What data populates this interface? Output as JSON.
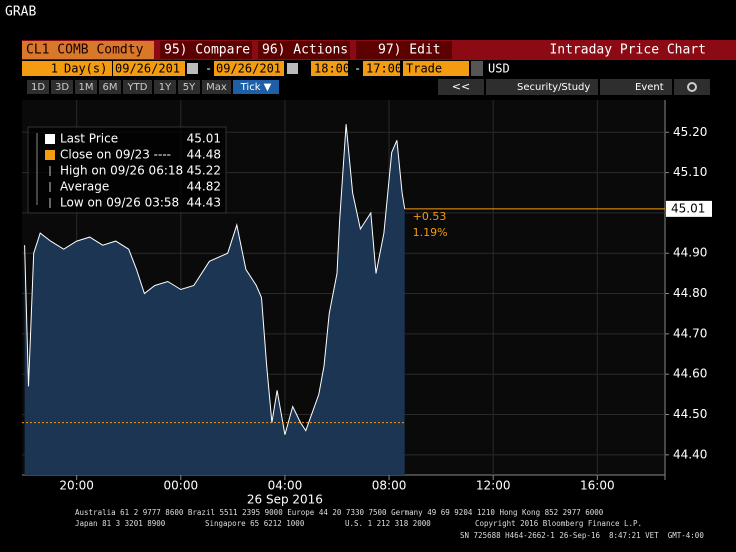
{
  "header": {
    "title": "GRAB"
  },
  "toolbar": {
    "security": "CL1 COMB Comdty",
    "buttons": [
      "95) Compare",
      "96) Actions",
      "97) Edit"
    ],
    "function": "Intraday Price Chart"
  },
  "settings": {
    "period": "1",
    "period_unit": "Day(s)",
    "start_date": "09/26/201",
    "separator": "-",
    "end_date": "09/26/201",
    "start_time": "18:00",
    "end_time": "17:00",
    "field": "Trade",
    "currency": "USD"
  },
  "range_buttons": [
    "1D",
    "3D",
    "1M",
    "6M",
    "YTD",
    "1Y",
    "5Y",
    "Max"
  ],
  "selected_button": "Tick ▼",
  "tools": [
    "<<",
    "Security/Study",
    "Event"
  ],
  "chart_data": {
    "type": "line",
    "color": "#ffffff",
    "area_color": "#1b3552",
    "x": [
      0,
      0.15,
      0.35,
      0.6,
      1,
      1.5,
      2,
      2.5,
      3,
      3.5,
      4,
      4.3,
      4.6,
      5,
      5.5,
      6,
      6.5,
      7.1,
      7.8,
      8.15,
      8.5,
      8.9,
      9.1,
      9.3,
      9.5,
      9.7,
      10,
      10.3,
      10.6,
      10.8,
      11.3,
      11.5,
      11.7,
      12,
      12.1,
      12.35,
      12.6,
      12.9,
      13.3,
      13.5,
      13.8,
      14.1,
      14.3,
      14.5,
      14.6
    ],
    "values": [
      44.92,
      44.57,
      44.9,
      44.95,
      44.93,
      44.91,
      44.93,
      44.94,
      44.92,
      44.93,
      44.91,
      44.86,
      44.8,
      44.82,
      44.83,
      44.81,
      44.82,
      44.88,
      44.9,
      44.97,
      44.86,
      44.82,
      44.79,
      44.62,
      44.48,
      44.56,
      44.45,
      44.52,
      44.48,
      44.46,
      44.55,
      44.62,
      44.75,
      44.85,
      44.98,
      45.22,
      45.05,
      44.96,
      45.0,
      44.85,
      44.95,
      45.15,
      45.18,
      45.05,
      45.01
    ],
    "xlim": [
      -0.1,
      24.6
    ],
    "xticks": [
      {
        "value": 2,
        "label": "20:00"
      },
      {
        "value": 6,
        "label": "00:00"
      },
      {
        "value": 10,
        "label": "04:00"
      },
      {
        "value": 14,
        "label": "08:00"
      },
      {
        "value": 18,
        "label": "12:00"
      },
      {
        "value": 22,
        "label": "16:00"
      }
    ],
    "x_date_label": "26 Sep 2016",
    "ylim": [
      44.35,
      45.28
    ],
    "yticks": [
      {
        "value": 44.4,
        "label": "44.40"
      },
      {
        "value": 44.5,
        "label": "44.50"
      },
      {
        "value": 44.6,
        "label": "44.60"
      },
      {
        "value": 44.7,
        "label": "44.70"
      },
      {
        "value": 44.8,
        "label": "44.80"
      },
      {
        "value": 44.9,
        "label": "44.90"
      },
      {
        "value": 45.0,
        "label": "45.00"
      },
      {
        "value": 45.1,
        "label": "45.10"
      },
      {
        "value": 45.2,
        "label": "45.20"
      }
    ],
    "grid": true,
    "legend": [
      {
        "label": "Last Price",
        "value": 45.01
      },
      {
        "label": "Close on 09/23 ----",
        "value": 44.48
      },
      {
        "label": "High on 09/26 06:18",
        "value": 45.22
      },
      {
        "label": "Average",
        "value": 44.82
      },
      {
        "label": "Low on 09/26 03:58",
        "value": 44.43
      }
    ],
    "change": "+0.53",
    "change_pct": "1.19%",
    "ref_color": "#f39c12"
  },
  "footer": {
    "line1": "Australia 61 2 9777 8600 Brazil 5511 2395 9000 Europe 44 20 7330 7500 Germany 49 69 9204 1210 Hong Kong 852 2977 6000",
    "line2a": "Japan 81 3 3201 8900",
    "line2b": "Singapore 65 6212 1000",
    "line2c": "U.S. 1 212 318 2000",
    "line2d": "Copyright 2016 Bloomberg Finance L.P.",
    "line3": "SN 725688 H464-2662-1 26-Sep-16  8:47:21 VET  GMT-4:00"
  }
}
